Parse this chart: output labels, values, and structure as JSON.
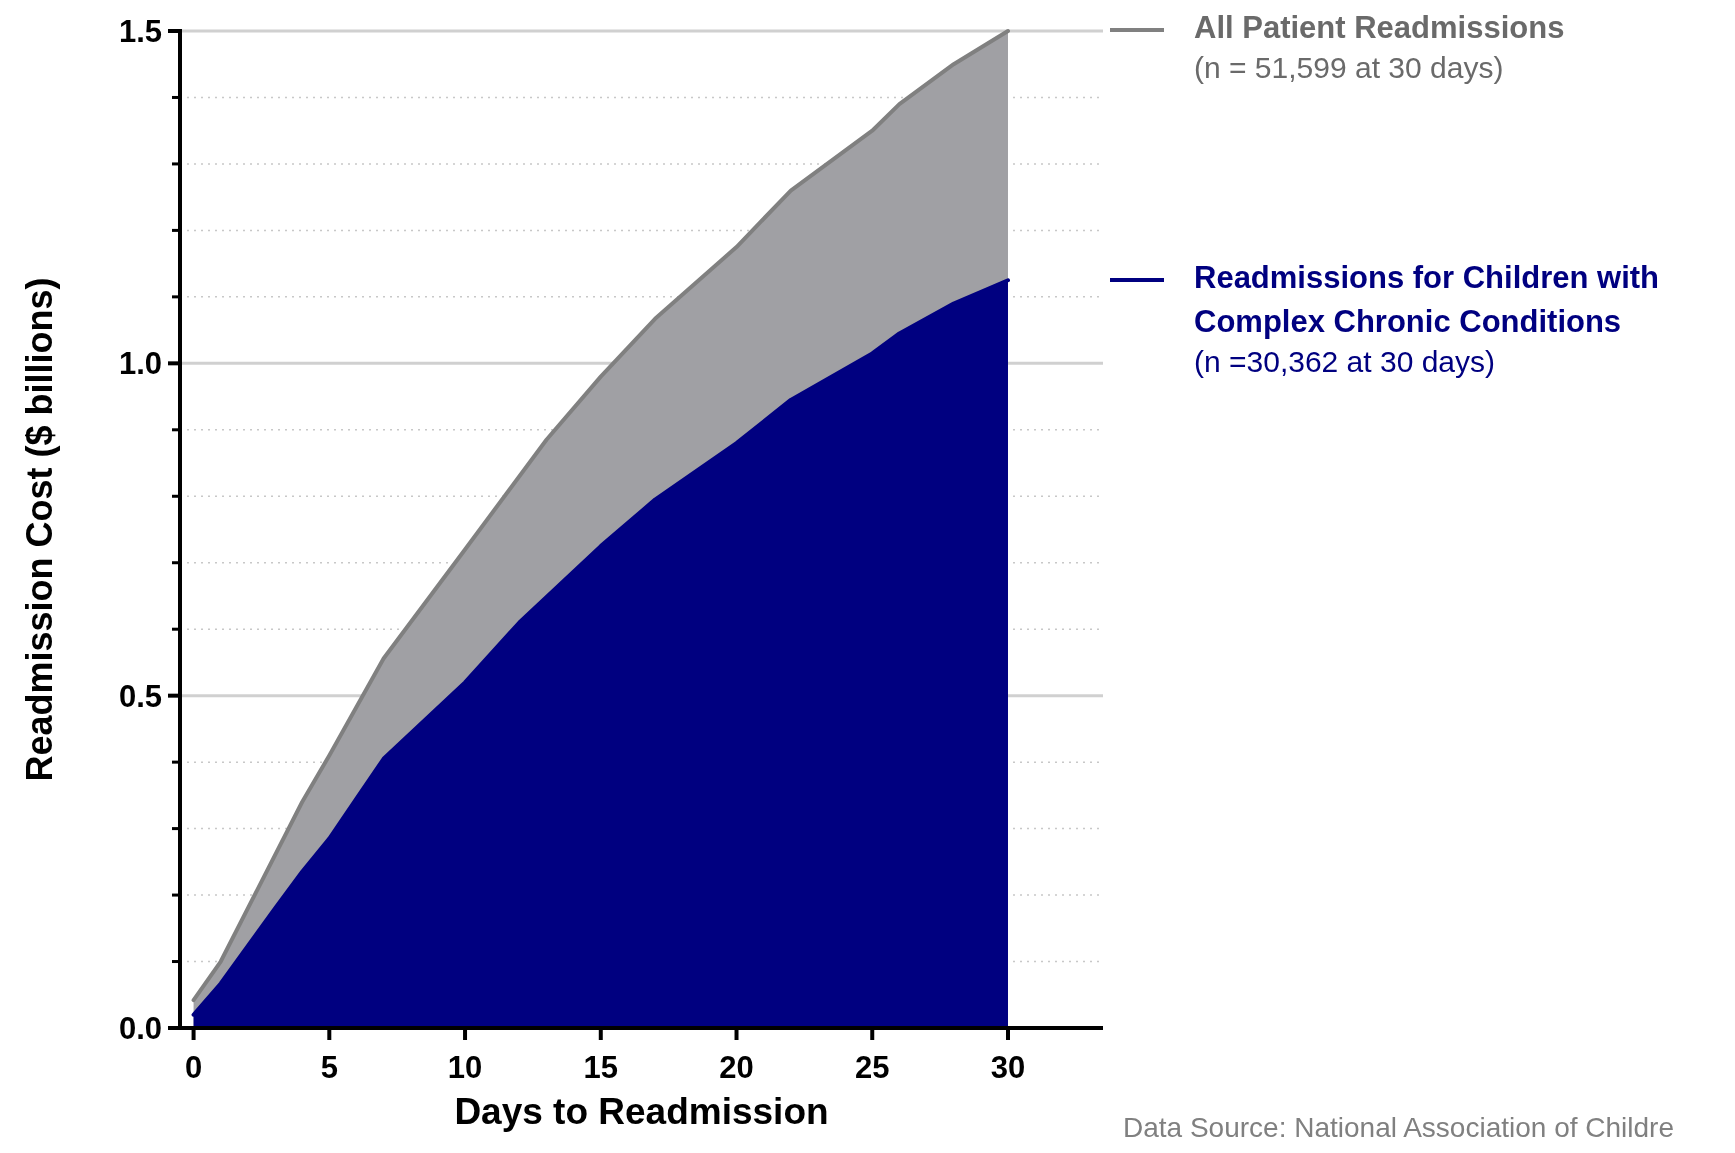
{
  "chart_data": {
    "type": "area",
    "xlabel": "Days to Readmission",
    "ylabel": "Readmission Cost ($ billions)",
    "xlim": [
      -0.5,
      33.5
    ],
    "xticks": [
      0,
      5,
      10,
      15,
      20,
      25,
      30
    ],
    "ylim": [
      0,
      1.5
    ],
    "yticks": [
      {
        "value": 0,
        "label": "0.0"
      },
      {
        "value": 0.1,
        "label": null
      },
      {
        "value": 0.2,
        "label": null
      },
      {
        "value": 0.3,
        "label": null
      },
      {
        "value": 0.4,
        "label": null
      },
      {
        "value": 0.5,
        "label": "0.5"
      },
      {
        "value": 0.6,
        "label": null
      },
      {
        "value": 0.7,
        "label": null
      },
      {
        "value": 0.8,
        "label": null
      },
      {
        "value": 0.9,
        "label": null
      },
      {
        "value": 1,
        "label": "1.0"
      },
      {
        "value": 1.1,
        "label": null
      },
      {
        "value": 1.2,
        "label": null
      },
      {
        "value": 1.3,
        "label": null
      },
      {
        "value": 1.4,
        "label": null
      },
      {
        "value": 1.5,
        "label": "1.5"
      }
    ],
    "grid": "y",
    "legend": "right",
    "series": [
      {
        "name": "All Patient Readmissions",
        "color": "#a0a0a4",
        "x": [
          0,
          1,
          4,
          5,
          7,
          10,
          13,
          15,
          17,
          20,
          22,
          25,
          26,
          28,
          30
        ],
        "values": [
          0.042,
          0.1,
          0.34,
          0.41,
          0.556,
          0.72,
          0.885,
          0.98,
          1.067,
          1.175,
          1.26,
          1.35,
          1.39,
          1.45,
          1.5
        ]
      },
      {
        "name": "Readmissions for Children with Complex Chronic Conditions",
        "color": "#000080",
        "x": [
          0,
          1,
          3,
          4,
          5,
          6,
          7,
          10,
          12,
          15,
          17,
          20,
          22,
          25,
          26,
          28,
          30
        ],
        "values": [
          0.02,
          0.067,
          0.18,
          0.235,
          0.285,
          0.345,
          0.405,
          0.52,
          0.61,
          0.725,
          0.795,
          0.88,
          0.945,
          1.015,
          1.045,
          1.09,
          1.125
        ]
      }
    ],
    "annotations": [
      "(n = 51,599 at 30 days)",
      "(n =30,362 at 30 days)",
      "Data Source: National Association of Childre"
    ]
  }
}
